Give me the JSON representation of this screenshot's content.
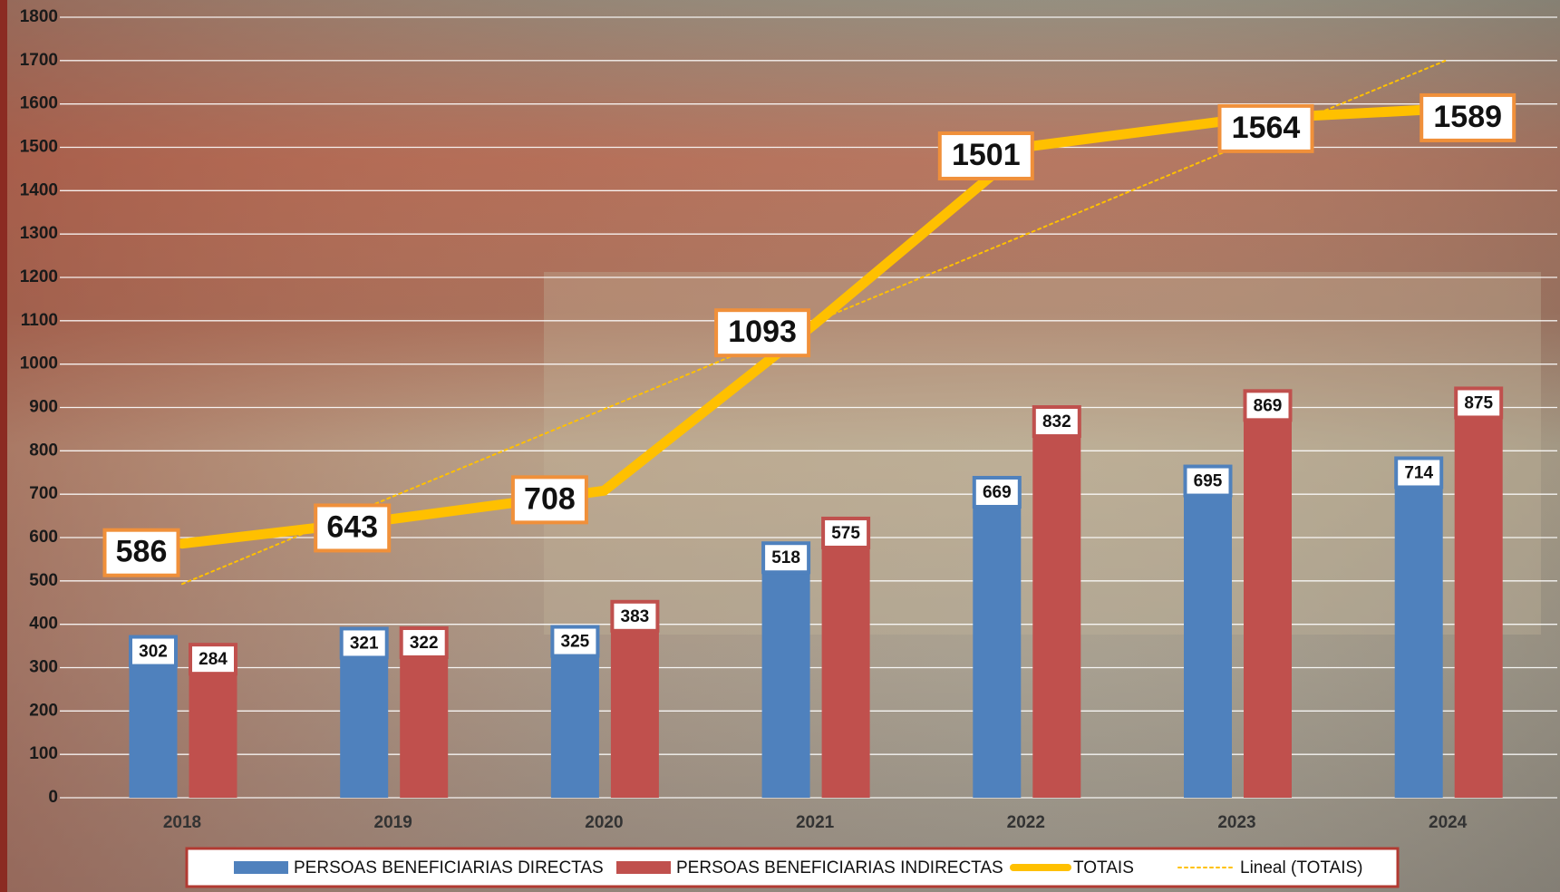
{
  "chart_data": {
    "type": "bar",
    "categories": [
      "2018",
      "2019",
      "2020",
      "2021",
      "2022",
      "2023",
      "2024"
    ],
    "series": [
      {
        "name": "PERSOAS BENEFICIARIAS DIRECTAS",
        "color": "#4f81bd",
        "values": [
          302,
          321,
          325,
          518,
          669,
          695,
          714
        ]
      },
      {
        "name": "PERSOAS BENEFICIARIAS INDIRECTAS",
        "color": "#c0504d",
        "values": [
          284,
          322,
          383,
          575,
          832,
          869,
          875
        ]
      },
      {
        "name": "TOTAIS",
        "type": "line",
        "color": "#ffc000",
        "values": [
          586,
          643,
          708,
          1093,
          1501,
          1564,
          1589
        ]
      },
      {
        "name": "Lineal (TOTAIS)",
        "type": "line",
        "line_style": "dotted",
        "color": "#ffc000",
        "values": [
          493,
          695,
          896,
          1098,
          1299,
          1501,
          1702
        ]
      }
    ],
    "ylim": [
      0,
      1800
    ],
    "yticks": [
      0,
      100,
      200,
      300,
      400,
      500,
      600,
      700,
      800,
      900,
      1000,
      1100,
      1200,
      1300,
      1400,
      1500,
      1600,
      1700,
      1800
    ],
    "grid": true
  }
}
